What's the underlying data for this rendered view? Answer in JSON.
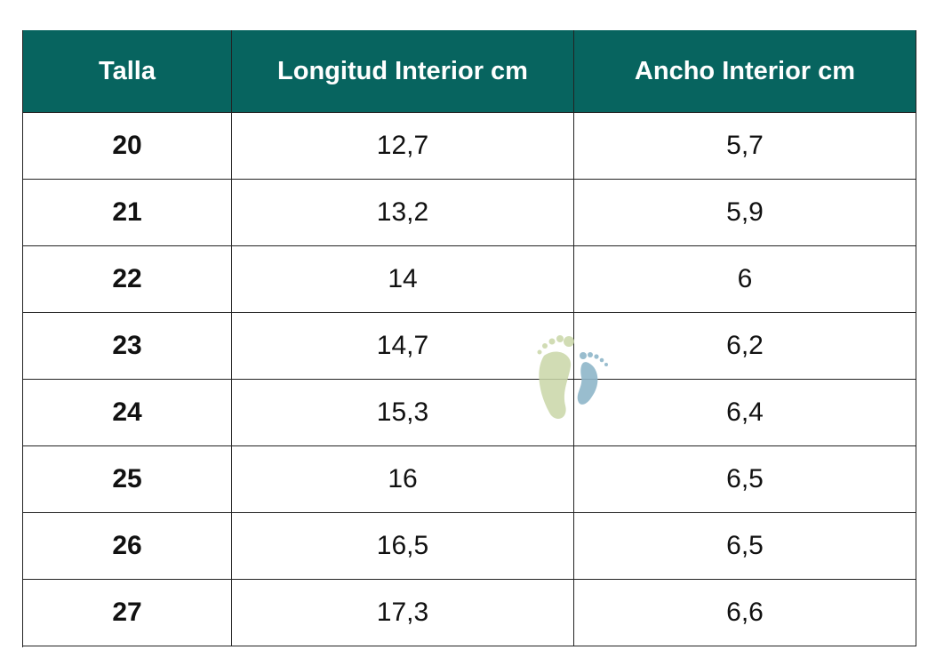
{
  "table": {
    "headers": [
      "Talla",
      "Longitud Interior cm",
      "Ancho Interior cm"
    ],
    "rows": [
      [
        "20",
        "12,7",
        "5,7"
      ],
      [
        "21",
        "13,2",
        "5,9"
      ],
      [
        "22",
        "14",
        "6"
      ],
      [
        "23",
        "14,7",
        "6,2"
      ],
      [
        "24",
        "15,3",
        "6,4"
      ],
      [
        "25",
        "16",
        "6,5"
      ],
      [
        "26",
        "16,5",
        "6,5"
      ],
      [
        "27",
        "17,3",
        "6,6"
      ]
    ]
  }
}
